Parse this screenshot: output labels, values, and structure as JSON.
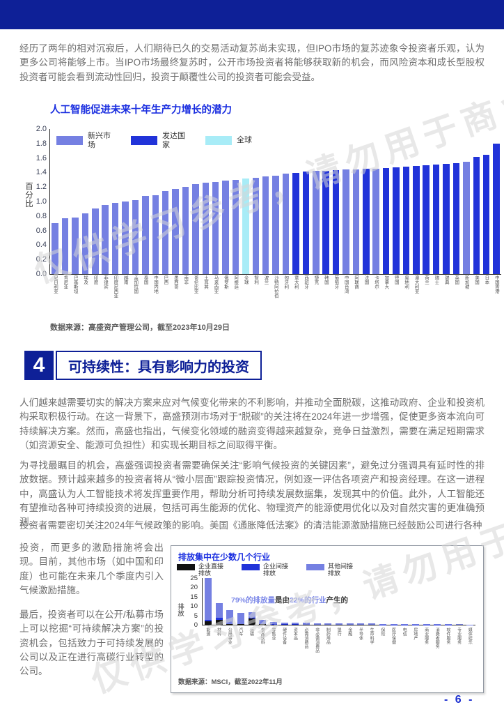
{
  "watermark": {
    "text": "仅供学习参考，请勿用于商业用途"
  },
  "intro": "经历了两年的相对沉寂后，人们期待已久的交易活动复苏尚未实现，但IPO市场的复苏迹象令投资者乐观，认为更多公司将能够上市。当IPO市场最终复苏时，公开市场投资者将能够获取新的机会，而风险资本和成长型股权投资者可能会看到流动性回归，投资于颠覆性公司的投资者可能会受益。",
  "section": {
    "number": "4",
    "title": "可持续性：具有影响力的投资"
  },
  "body": {
    "para1": "人们越来越需要切实的解决方案来应对气候变化带来的不利影响，并推动全面脱碳，这推动政府、企业和投资机构采取积极行动。在这一背景下，高盛预测市场对于“脱碳”的关注将在2024年进一步增强，促使更多资本流向可持续解决方案。然而，高盛也指出，气候变化领域的融资变得越来越复杂，竞争日益激烈，需要在满足短期需求（如资源安全、能源可负担性）和实现长期目标之间取得平衡。",
    "para2": "为寻找最瞩目的机会，高盛强调投资者需要确保关注“影响气候投资的关键因素”，避免过分强调具有延时性的排放数据。预计越来越多的投资者将从“微小层面”跟踪投资情况，例如逐一评估各项资产和投资经理。在这一进程中，高盛认为人工智能技术将发挥重要作用，帮助分析可持续发展数据集，发现其中的价值。此外，人工智能还有望推动各种可持续投资的进展，包括可再生能源的优化、物理资产的能源使用优化以及对自然灾害的更准确预测。",
    "para3": "投资者需要密切关注2024年气候政策的影响。美国《通胀降低法案》的清洁能源激励措施已经鼓励公司进行各种",
    "para4": "投资，而更多的激励措施将会出现。目前，其他市场（如中国和印度）也可能在未来几个季度内引入气候激励措施。",
    "para5": "最后，投资者可以在公开/私募市场上可以挖掘“可持续解决方案”的投资机会，包括致力于可持续发展的公司以及正在进行高碳行业转型的公司。"
  },
  "page": {
    "number_label": "- 6 -"
  },
  "chart_data": [
    {
      "type": "bar",
      "title": "人工智能促进未来十年生产力增长的潜力",
      "ylabel": "百分比",
      "ylim": [
        0,
        2.0
      ],
      "yticks": [
        0.0,
        0.2,
        0.4,
        0.6,
        0.8,
        1.0,
        1.2,
        1.4,
        1.6,
        1.8,
        2.0
      ],
      "grid": false,
      "legend_position": "top-left",
      "legend": [
        {
          "label": "新兴市场",
          "group": "em",
          "color": "#7580e2"
        },
        {
          "label": "发达国家",
          "group": "dm",
          "color": "#2133d9"
        },
        {
          "label": "全球",
          "group": "global",
          "color": "#a8ecf7"
        }
      ],
      "group_colors": {
        "em": "#7580e2",
        "dm": "#2133d9",
        "global": "#a8ecf7"
      },
      "source": "数据来源：高盛资产管理公司，截至2023年10月29日",
      "bars": [
        {
          "label": "尼日利亚",
          "value": 0.7,
          "group": "em"
        },
        {
          "label": "肯尼亚",
          "value": 0.77,
          "group": "em"
        },
        {
          "label": "巴基斯坦",
          "value": 0.78,
          "group": "em"
        },
        {
          "label": "埃及",
          "value": 0.84,
          "group": "em"
        },
        {
          "label": "印度",
          "value": 0.9,
          "group": "em"
        },
        {
          "label": "菲律宾",
          "value": 0.95,
          "group": "em"
        },
        {
          "label": "印度尼西亚",
          "value": 0.98,
          "group": "em"
        },
        {
          "label": "越南",
          "value": 1.0,
          "group": "em"
        },
        {
          "label": "孟加拉国",
          "value": 1.02,
          "group": "em"
        },
        {
          "label": "泰国",
          "value": 1.08,
          "group": "em"
        },
        {
          "label": "中国内地",
          "value": 1.09,
          "group": "em"
        },
        {
          "label": "巴西",
          "value": 1.14,
          "group": "em"
        },
        {
          "label": "墨西哥",
          "value": 1.17,
          "group": "em"
        },
        {
          "label": "南非",
          "value": 1.2,
          "group": "em"
        },
        {
          "label": "哥伦比亚",
          "value": 1.24,
          "group": "em"
        },
        {
          "label": "土耳其",
          "value": 1.26,
          "group": "em"
        },
        {
          "label": "马来西亚",
          "value": 1.27,
          "group": "em"
        },
        {
          "label": "俄罗斯",
          "value": 1.29,
          "group": "em"
        },
        {
          "label": "阿根廷",
          "value": 1.3,
          "group": "em"
        },
        {
          "label": "全球",
          "value": 1.32,
          "group": "global"
        },
        {
          "label": "智利",
          "value": 1.33,
          "group": "em"
        },
        {
          "label": "波兰",
          "value": 1.35,
          "group": "em"
        },
        {
          "label": "沙特阿拉伯",
          "value": 1.36,
          "group": "em"
        },
        {
          "label": "匈牙利",
          "value": 1.38,
          "group": "em"
        },
        {
          "label": "意大利",
          "value": 1.39,
          "group": "dm"
        },
        {
          "label": "西班牙",
          "value": 1.41,
          "group": "dm"
        },
        {
          "label": "捷克",
          "value": 1.42,
          "group": "em"
        },
        {
          "label": "韩国",
          "value": 1.42,
          "group": "dm"
        },
        {
          "label": "葡萄牙",
          "value": 1.43,
          "group": "dm"
        },
        {
          "label": "中国台湾",
          "value": 1.44,
          "group": "em"
        },
        {
          "label": "阿联酋",
          "value": 1.44,
          "group": "em"
        },
        {
          "label": "法国",
          "value": 1.45,
          "group": "dm"
        },
        {
          "label": "卡塔尔",
          "value": 1.45,
          "group": "em"
        },
        {
          "label": "加拿大",
          "value": 1.46,
          "group": "dm"
        },
        {
          "label": "德国",
          "value": 1.47,
          "group": "dm"
        },
        {
          "label": "奥地利",
          "value": 1.48,
          "group": "dm"
        },
        {
          "label": "澳大利亚",
          "value": 1.49,
          "group": "dm"
        },
        {
          "label": "荷兰",
          "value": 1.5,
          "group": "dm"
        },
        {
          "label": "瑞士",
          "value": 1.51,
          "group": "dm"
        },
        {
          "label": "瑞典",
          "value": 1.52,
          "group": "dm"
        },
        {
          "label": "英国",
          "value": 1.53,
          "group": "dm"
        },
        {
          "label": "新加坡",
          "value": 1.55,
          "group": "em"
        },
        {
          "label": "美国",
          "value": 1.62,
          "group": "dm"
        },
        {
          "label": "日本",
          "value": 1.64,
          "group": "dm"
        },
        {
          "label": "中国香港",
          "value": 1.8,
          "group": "dm"
        }
      ]
    },
    {
      "type": "stacked-bar",
      "title": "排放集中在少数几个行业",
      "ylabel": "排放",
      "ylim": [
        0,
        25
      ],
      "yticks": [
        0,
        5,
        10,
        15,
        20,
        25
      ],
      "legend": [
        {
          "label": "企业直接排放",
          "key": "direct",
          "color": "#111111"
        },
        {
          "label": "企业间接排放",
          "key": "corp_indirect",
          "color": "#2133d9"
        },
        {
          "label": "其他间接排放",
          "key": "other_indirect",
          "color": "#7580e2"
        }
      ],
      "annotation": [
        {
          "text": "79%的排放量",
          "color": "#7b87e8"
        },
        {
          "text": "是由",
          "color": "#333333"
        },
        {
          "text": "22%的行业",
          "color": "#7b87e8"
        },
        {
          "text": "产生的",
          "color": "#333333"
        }
      ],
      "source": "数据来源：MSCI，截至2022年11月",
      "bars": [
        {
          "label": "能源",
          "direct": 2.0,
          "corp_indirect": 0.8,
          "other_indirect": 22.2
        },
        {
          "label": "材料",
          "direct": 2.5,
          "corp_indirect": 1.2,
          "other_indirect": 7.8
        },
        {
          "label": "公用事业",
          "direct": 0.3,
          "corp_indirect": 0.2,
          "other_indirect": 7.5
        },
        {
          "label": "汽车",
          "direct": 0.2,
          "corp_indirect": 0.3,
          "other_indirect": 6.0
        },
        {
          "label": "运输",
          "direct": 3.5,
          "corp_indirect": 0.2,
          "other_indirect": 3.1
        },
        {
          "label": "食品饮料",
          "direct": 0.3,
          "corp_indirect": 0.2,
          "other_indirect": 2.0
        },
        {
          "label": "零售业",
          "direct": 0.1,
          "corp_indirect": 0.1,
          "other_indirect": 1.3
        },
        {
          "label": "硬件设备",
          "direct": 0.05,
          "corp_indirect": 0.15,
          "other_indirect": 1.1
        },
        {
          "label": "资本品",
          "direct": 0.1,
          "corp_indirect": 0.1,
          "other_indirect": 1.0
        },
        {
          "label": "必需消费品",
          "direct": 0.05,
          "corp_indirect": 0.1,
          "other_indirect": 0.85
        },
        {
          "label": "非必需消费品",
          "direct": 0.05,
          "corp_indirect": 0.1,
          "other_indirect": 0.75
        },
        {
          "label": "制药用品",
          "direct": 0.05,
          "corp_indirect": 0.05,
          "other_indirect": 0.7
        },
        {
          "label": "银行",
          "direct": 0.05,
          "corp_indirect": 0.05,
          "other_indirect": 0.7
        },
        {
          "label": "金融",
          "direct": 0.05,
          "corp_indirect": 0.05,
          "other_indirect": 0.6
        },
        {
          "label": "半导体",
          "direct": 0.05,
          "corp_indirect": 0.1,
          "other_indirect": 0.55
        },
        {
          "label": "生命科学",
          "direct": 0.05,
          "corp_indirect": 0.05,
          "other_indirect": 0.5
        },
        {
          "label": "保险",
          "direct": 0.02,
          "corp_indirect": 0.05,
          "other_indirect": 0.43
        },
        {
          "label": "医疗保健",
          "direct": 0.02,
          "corp_indirect": 0.05,
          "other_indirect": 0.43
        },
        {
          "label": "电信",
          "direct": 0.02,
          "corp_indirect": 0.04,
          "other_indirect": 0.34
        },
        {
          "label": "房地产",
          "direct": 0.02,
          "corp_indirect": 0.04,
          "other_indirect": 0.34
        },
        {
          "label": "商业服务",
          "direct": 0.02,
          "corp_indirect": 0.03,
          "other_indirect": 0.25
        },
        {
          "label": "消费者服务",
          "direct": 0.02,
          "corp_indirect": 0.03,
          "other_indirect": 0.25
        },
        {
          "label": "软件服务",
          "direct": 0.01,
          "corp_indirect": 0.03,
          "other_indirect": 0.21
        },
        {
          "label": "专业服务",
          "direct": 0.01,
          "corp_indirect": 0.02,
          "other_indirect": 0.17
        },
        {
          "label": "媒体娱乐",
          "direct": 0.01,
          "corp_indirect": 0.02,
          "other_indirect": 0.12
        }
      ]
    }
  ]
}
